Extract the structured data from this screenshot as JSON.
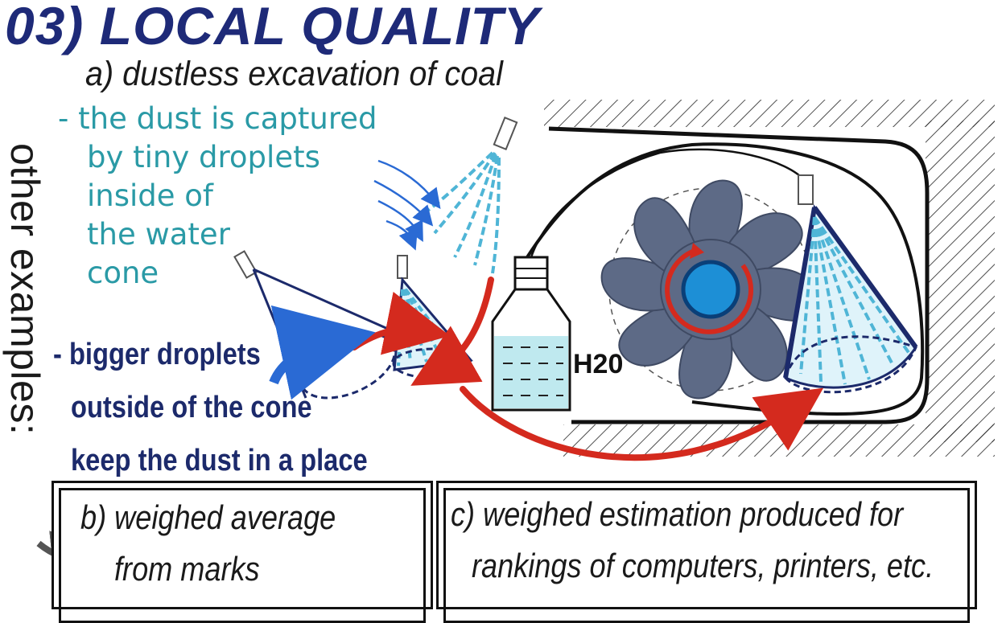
{
  "title": "03) LOCAL QUALITY",
  "subtitle": "a) dustless excavation of coal",
  "dust_text": {
    "lines": [
      "- the dust is captured",
      "by tiny droplets",
      "inside of",
      "the water",
      "cone"
    ]
  },
  "droplet_text": {
    "lines": [
      "- bigger droplets",
      "outside of the cone",
      "keep the dust in a place"
    ]
  },
  "side_label": "other examples:",
  "water_label": "H20",
  "box_b": {
    "lines": [
      "b) weighed average",
      "from marks"
    ]
  },
  "box_c": {
    "lines": [
      "c) weighed estimation produced for",
      "rankings of computers, printers, etc."
    ]
  },
  "colors": {
    "title": "#1e2a78",
    "teal_text": "#2a9aa6",
    "navy_text": "#1c2a6b",
    "arrow_red": "#d42a1e",
    "arrow_blue": "#2a6ad4",
    "fan": "#5d6a86",
    "water": "#bfe9ef"
  }
}
